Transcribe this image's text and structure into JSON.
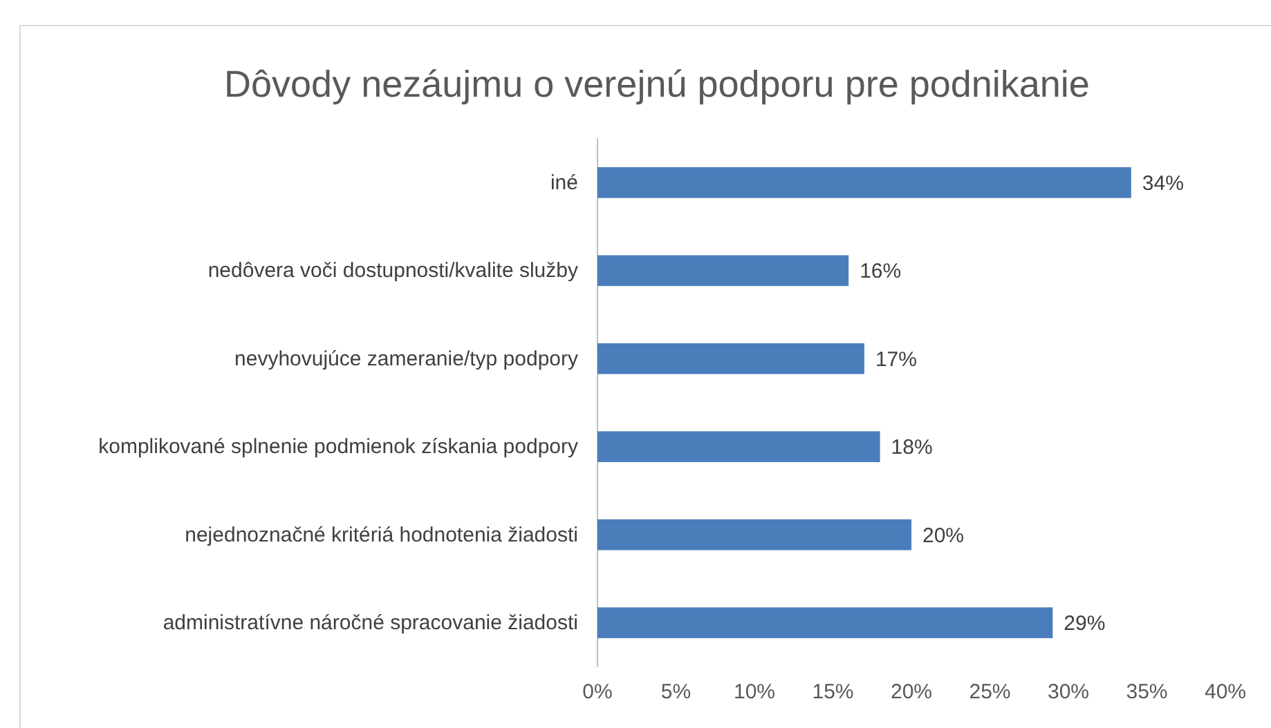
{
  "chart_data": {
    "type": "bar",
    "orientation": "horizontal",
    "title": "Dôvody nezáujmu o verejnú podporu pre podnikanie",
    "categories": [
      "iné",
      "nedôvera voči dostupnosti/kvalite služby",
      "nevyhovujúce zameranie/typ podpory",
      "komplikované splnenie podmienok získania podpory",
      "nejednoznačné kritériá hodnotenia žiadosti",
      "administratívne náročné spracovanie žiadosti"
    ],
    "values": [
      34,
      16,
      17,
      18,
      20,
      29
    ],
    "value_labels": [
      "34%",
      "16%",
      "17%",
      "18%",
      "20%",
      "29%"
    ],
    "color": "#4a7ebb",
    "xlim": [
      0,
      40
    ],
    "xticks": [
      {
        "value": 0,
        "label": "0%"
      },
      {
        "value": 5,
        "label": "5%"
      },
      {
        "value": 10,
        "label": "10%"
      },
      {
        "value": 15,
        "label": "15%"
      },
      {
        "value": 20,
        "label": "20%"
      },
      {
        "value": 25,
        "label": "25%"
      },
      {
        "value": 30,
        "label": "30%"
      },
      {
        "value": 35,
        "label": "35%"
      },
      {
        "value": 40,
        "label": "40%"
      }
    ],
    "grid": false
  }
}
